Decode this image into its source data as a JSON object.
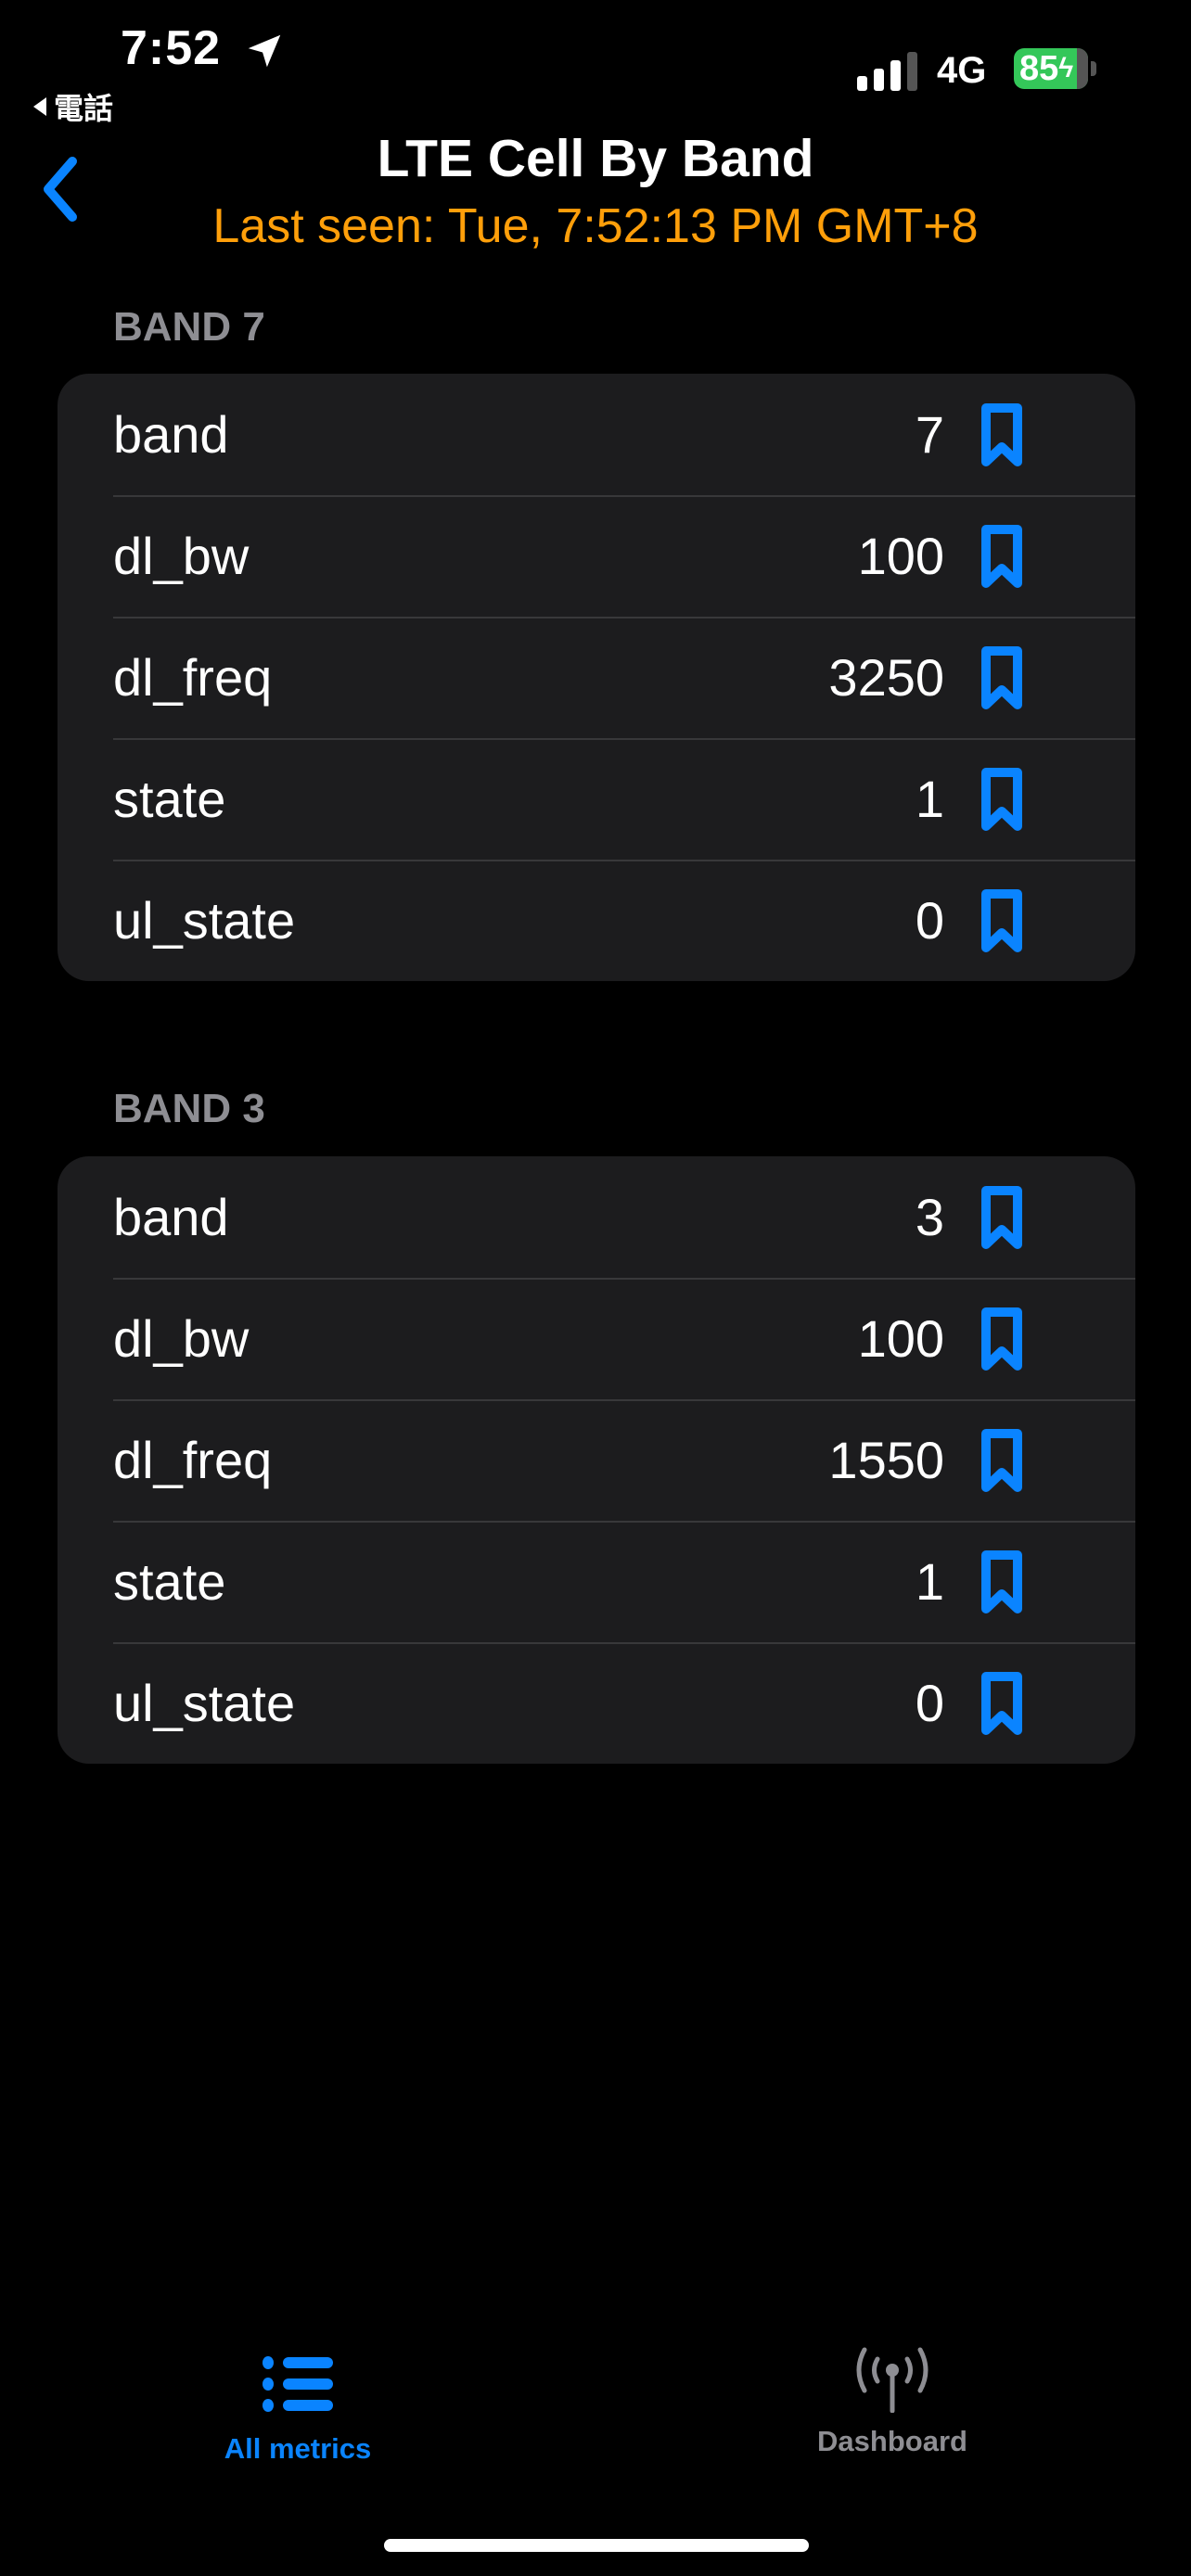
{
  "status_bar": {
    "time": "7:52",
    "back_app": "電話",
    "network": "4G",
    "battery": "85",
    "location_icon": "location-arrow-icon",
    "signal_icon": "cellular-signal-icon"
  },
  "nav": {
    "title": "LTE Cell By Band",
    "subtitle": "Last seen: Tue, 7:52:13 PM GMT+8",
    "back_icon": "chevron-left-icon"
  },
  "colors": {
    "accent": "#0A84FF",
    "subtitle": "#FF9F0A",
    "card": "#1C1C1E",
    "section_header": "#8E8E93",
    "battery": "#34C759",
    "inactive_tab": "#8E8E93"
  },
  "sections": [
    {
      "header": "BAND 7",
      "rows": [
        {
          "key": "band",
          "value": "7"
        },
        {
          "key": "dl_bw",
          "value": "100"
        },
        {
          "key": "dl_freq",
          "value": "3250"
        },
        {
          "key": "state",
          "value": "1"
        },
        {
          "key": "ul_state",
          "value": "0"
        }
      ]
    },
    {
      "header": "BAND 3",
      "rows": [
        {
          "key": "band",
          "value": "3"
        },
        {
          "key": "dl_bw",
          "value": "100"
        },
        {
          "key": "dl_freq",
          "value": "1550"
        },
        {
          "key": "state",
          "value": "1"
        },
        {
          "key": "ul_state",
          "value": "0"
        }
      ]
    }
  ],
  "tabs": [
    {
      "label": "All metrics",
      "icon": "list-bullet-icon",
      "selected": true
    },
    {
      "label": "Dashboard",
      "icon": "antenna-icon",
      "selected": false
    }
  ]
}
